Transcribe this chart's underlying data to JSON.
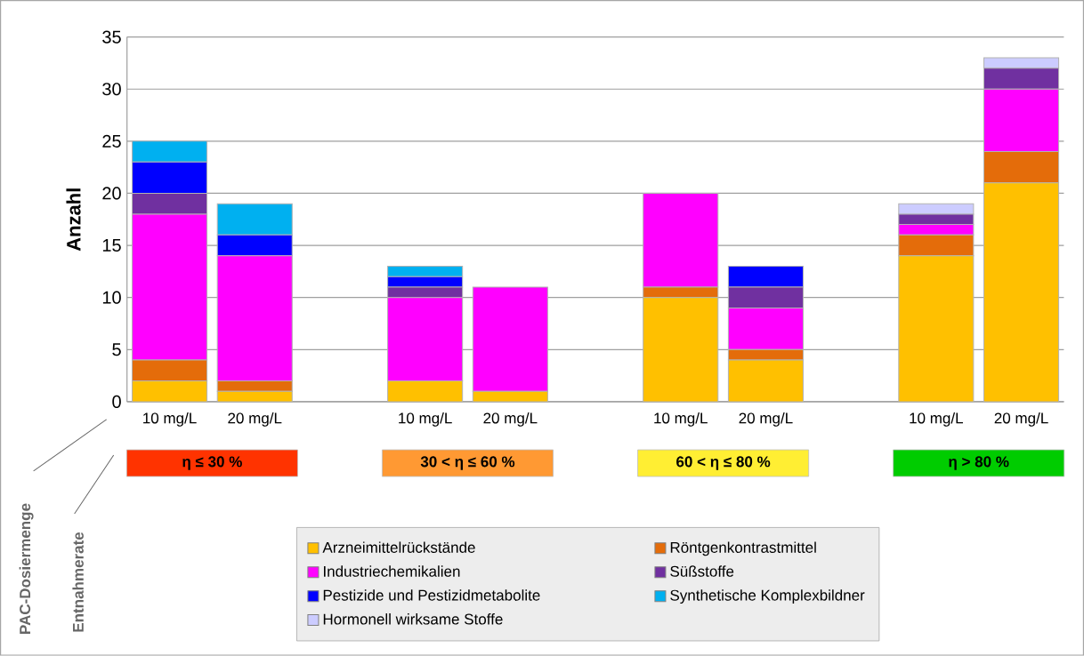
{
  "chart_data": {
    "type": "bar",
    "stacked": true,
    "ylabel": "Anzahl",
    "categories": [
      "10 mg/L",
      "20 mg/L",
      null,
      "10 mg/L",
      "20 mg/L",
      null,
      "10 mg/L",
      "20 mg/L",
      null,
      "10 mg/L",
      "20 mg/L"
    ],
    "series": [
      {
        "name": "Arzneimittelrückstände",
        "color": "#ffc000",
        "values": [
          2,
          1,
          null,
          2,
          1,
          null,
          10,
          4,
          null,
          14,
          21
        ]
      },
      {
        "name": "Röntgenkontrastmittel",
        "color": "#e46c0a",
        "values": [
          2,
          1,
          null,
          0,
          0,
          null,
          1,
          1,
          null,
          2,
          3
        ]
      },
      {
        "name": "Industriechemikalien",
        "color": "#ff00ff",
        "values": [
          14,
          12,
          null,
          8,
          10,
          null,
          9,
          4,
          null,
          1,
          6
        ]
      },
      {
        "name": "Süßstoffe",
        "color": "#7030a0",
        "values": [
          2,
          0,
          null,
          1,
          0,
          null,
          0,
          2,
          null,
          1,
          2
        ]
      },
      {
        "name": "Pestizide und Pestizidmetabolite",
        "color": "#0000ff",
        "values": [
          3,
          2,
          null,
          1,
          0,
          null,
          0,
          2,
          null,
          0,
          0
        ]
      },
      {
        "name": "Synthetische Komplexbildner",
        "color": "#00b0f0",
        "values": [
          2,
          3,
          null,
          1,
          0,
          null,
          0,
          0,
          null,
          0,
          0
        ]
      },
      {
        "name": "Hormonell wirksame Stoffe",
        "color": "#ccccff",
        "values": [
          0,
          0,
          null,
          0,
          0,
          null,
          0,
          0,
          null,
          1,
          1
        ]
      }
    ],
    "ylim": [
      0,
      35
    ],
    "yticks": [
      0,
      5,
      10,
      15,
      20,
      25,
      30,
      35
    ],
    "grid": "y",
    "legend": "bottom",
    "annotations": [
      "η ≤ 30 %",
      "30 < η ≤ 60 %",
      "60 < η ≤ 80 %",
      "η > 80 %",
      "PAC-Dosiermenge",
      "Entnahmerate"
    ]
  }
}
